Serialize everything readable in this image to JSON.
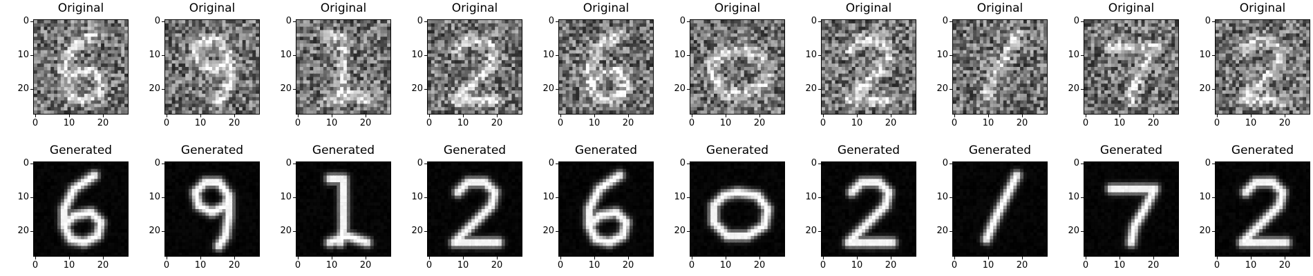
{
  "rows": [
    {
      "title": "Original",
      "kind": "noisy"
    },
    {
      "title": "Generated",
      "kind": "clean"
    }
  ],
  "digits": [
    "6",
    "9",
    "1",
    "2",
    "6",
    "0",
    "2",
    "1",
    "7",
    "2"
  ],
  "axes": {
    "x_ticks": [
      "0",
      "10",
      "20"
    ],
    "y_ticks": [
      "0",
      "10",
      "20"
    ],
    "image_size": 28
  },
  "colormap": "gray"
}
